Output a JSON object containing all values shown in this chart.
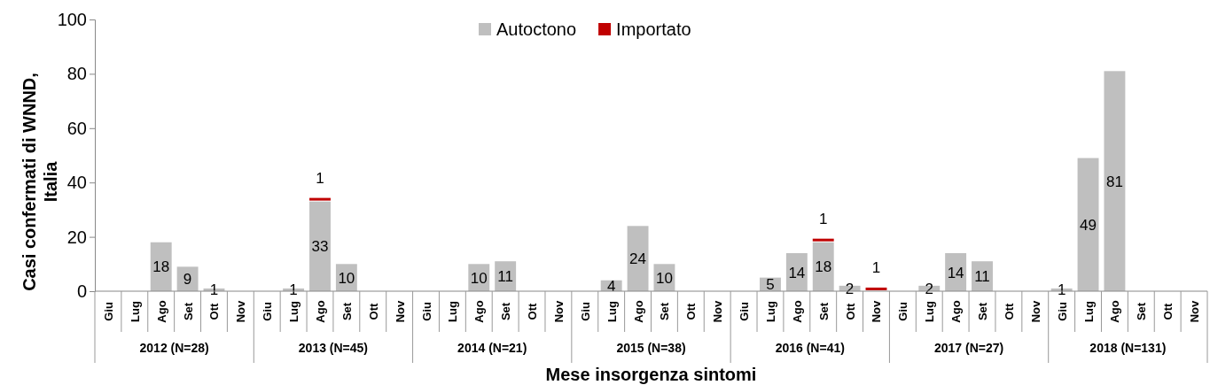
{
  "chart_data": {
    "type": "bar",
    "stacked": true,
    "xlabel": "Mese insorgenza sintomi",
    "ylabel": "Casi confermati di WNND, Italia",
    "categories": [
      "Giu",
      "Lug",
      "Ago",
      "Set",
      "Ott",
      "Nov",
      "Giu",
      "Lug",
      "Ago",
      "Set",
      "Ott",
      "Nov",
      "Giu",
      "Lug",
      "Ago",
      "Set",
      "Ott",
      "Nov",
      "Giu",
      "Lug",
      "Ago",
      "Set",
      "Ott",
      "Nov",
      "Giu",
      "Lug",
      "Ago",
      "Set",
      "Ott",
      "Nov",
      "Giu",
      "Lug",
      "Ago",
      "Set",
      "Ott",
      "Nov",
      "Giu",
      "Lug",
      "Ago",
      "Set",
      "Ott",
      "Nov"
    ],
    "series": [
      {
        "name": "Autoctono",
        "color": "#bfbfbf",
        "values": [
          null,
          null,
          18,
          9,
          1,
          null,
          null,
          1,
          33,
          10,
          null,
          null,
          null,
          null,
          10,
          11,
          null,
          null,
          null,
          4,
          24,
          10,
          null,
          null,
          null,
          5,
          14,
          18,
          2,
          null,
          null,
          2,
          14,
          11,
          null,
          null,
          1,
          49,
          81,
          null,
          null,
          null
        ]
      },
      {
        "name": "Importato",
        "color": "#c00000",
        "values": [
          null,
          null,
          null,
          null,
          null,
          null,
          null,
          null,
          1,
          null,
          null,
          null,
          null,
          null,
          null,
          null,
          null,
          null,
          null,
          null,
          null,
          null,
          null,
          null,
          null,
          null,
          null,
          1,
          null,
          1,
          null,
          null,
          null,
          null,
          null,
          null,
          null,
          null,
          null,
          null,
          null,
          null
        ]
      }
    ],
    "annotations": [
      "2012 (N=28)",
      "2013 (N=45)",
      "2014 (N=21)",
      "2015 (N=38)",
      "2016 (N=41)",
      "2017 (N=27)",
      "2018 (N=131)"
    ],
    "ylim": [
      0,
      100
    ],
    "yticks": [
      0,
      20,
      40,
      60,
      80,
      100
    ],
    "data_labels": true,
    "legend": "top",
    "grid": false
  }
}
